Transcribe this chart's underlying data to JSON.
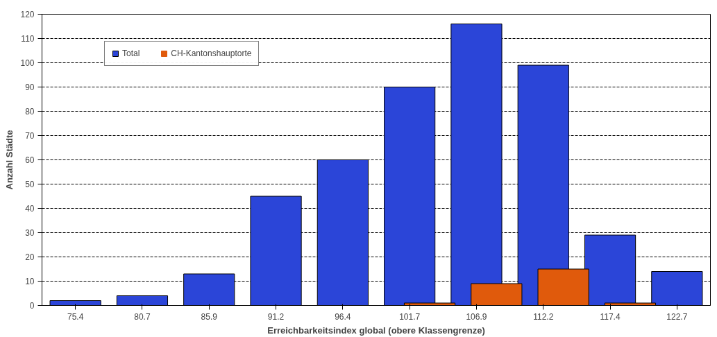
{
  "chart_data": {
    "type": "bar",
    "xlabel": "Erreichbarkeitsindex global (obere Klassengrenze)",
    "ylabel": "Anzahl Städte",
    "categories": [
      "75.4",
      "80.7",
      "85.9",
      "91.2",
      "96.4",
      "101.7",
      "106.9",
      "112.2",
      "117.4",
      "122.7"
    ],
    "series": [
      {
        "name": "Total",
        "color": "#2b45d8",
        "values": [
          2,
          4,
          13,
          45,
          60,
          90,
          116,
          99,
          29,
          14
        ]
      },
      {
        "name": "CH-Kantonshauptorte",
        "color": "#e05a0c",
        "values": [
          0,
          0,
          0,
          0,
          0,
          1,
          9,
          15,
          1,
          0
        ]
      }
    ],
    "ylim": [
      0,
      120
    ],
    "yticks": [
      0,
      10,
      20,
      30,
      40,
      50,
      60,
      70,
      80,
      90,
      100,
      110,
      120
    ],
    "grid": "y",
    "legend": "top left"
  }
}
